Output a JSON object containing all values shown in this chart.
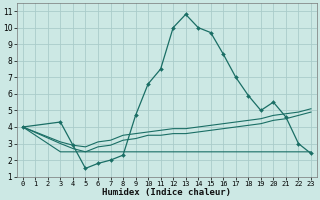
{
  "xlabel": "Humidex (Indice chaleur)",
  "bg_color": "#cce8e4",
  "grid_color": "#aaccca",
  "line_color": "#1a6e65",
  "xlim": [
    -0.5,
    23.5
  ],
  "ylim": [
    1,
    11.5
  ],
  "xticks": [
    0,
    1,
    2,
    3,
    4,
    5,
    6,
    7,
    8,
    9,
    10,
    11,
    12,
    13,
    14,
    15,
    16,
    17,
    18,
    19,
    20,
    21,
    22,
    23
  ],
  "yticks": [
    1,
    2,
    3,
    4,
    5,
    6,
    7,
    8,
    9,
    10,
    11
  ],
  "main_x": [
    0,
    3,
    4,
    5,
    6,
    7,
    8,
    9,
    10,
    11,
    12,
    13,
    14,
    15,
    16,
    17,
    18,
    19,
    20,
    21,
    22,
    23
  ],
  "main_y": [
    4.0,
    4.3,
    2.9,
    1.5,
    1.8,
    2.0,
    2.3,
    4.7,
    6.6,
    7.5,
    10.0,
    10.8,
    10.0,
    9.7,
    8.4,
    7.0,
    5.9,
    5.0,
    5.5,
    4.6,
    3.0,
    2.4
  ],
  "trend1_x": [
    0,
    3,
    4,
    5,
    6,
    7,
    8,
    9,
    10,
    11,
    12,
    13,
    14,
    15,
    16,
    17,
    18,
    19,
    20,
    21,
    22,
    23
  ],
  "trend1_y": [
    4.0,
    3.1,
    2.9,
    2.8,
    3.1,
    3.2,
    3.5,
    3.6,
    3.7,
    3.8,
    3.9,
    3.9,
    4.0,
    4.1,
    4.2,
    4.3,
    4.4,
    4.5,
    4.7,
    4.8,
    4.9,
    5.1
  ],
  "trend2_x": [
    0,
    3,
    4,
    5,
    6,
    7,
    8,
    9,
    10,
    11,
    12,
    13,
    14,
    15,
    16,
    17,
    18,
    19,
    20,
    21,
    22,
    23
  ],
  "trend2_y": [
    4.0,
    3.0,
    2.7,
    2.5,
    2.8,
    2.9,
    3.2,
    3.3,
    3.5,
    3.5,
    3.6,
    3.6,
    3.7,
    3.8,
    3.9,
    4.0,
    4.1,
    4.2,
    4.4,
    4.5,
    4.7,
    4.9
  ],
  "flat_x": [
    0,
    3,
    4,
    5,
    6,
    7,
    8,
    9,
    10,
    11,
    12,
    13,
    14,
    15,
    16,
    17,
    18,
    19,
    20,
    21,
    22,
    23
  ],
  "flat_y": [
    4.0,
    2.5,
    2.5,
    2.5,
    2.5,
    2.5,
    2.5,
    2.5,
    2.5,
    2.5,
    2.5,
    2.5,
    2.5,
    2.5,
    2.5,
    2.5,
    2.5,
    2.5,
    2.5,
    2.5,
    2.5,
    2.5
  ]
}
